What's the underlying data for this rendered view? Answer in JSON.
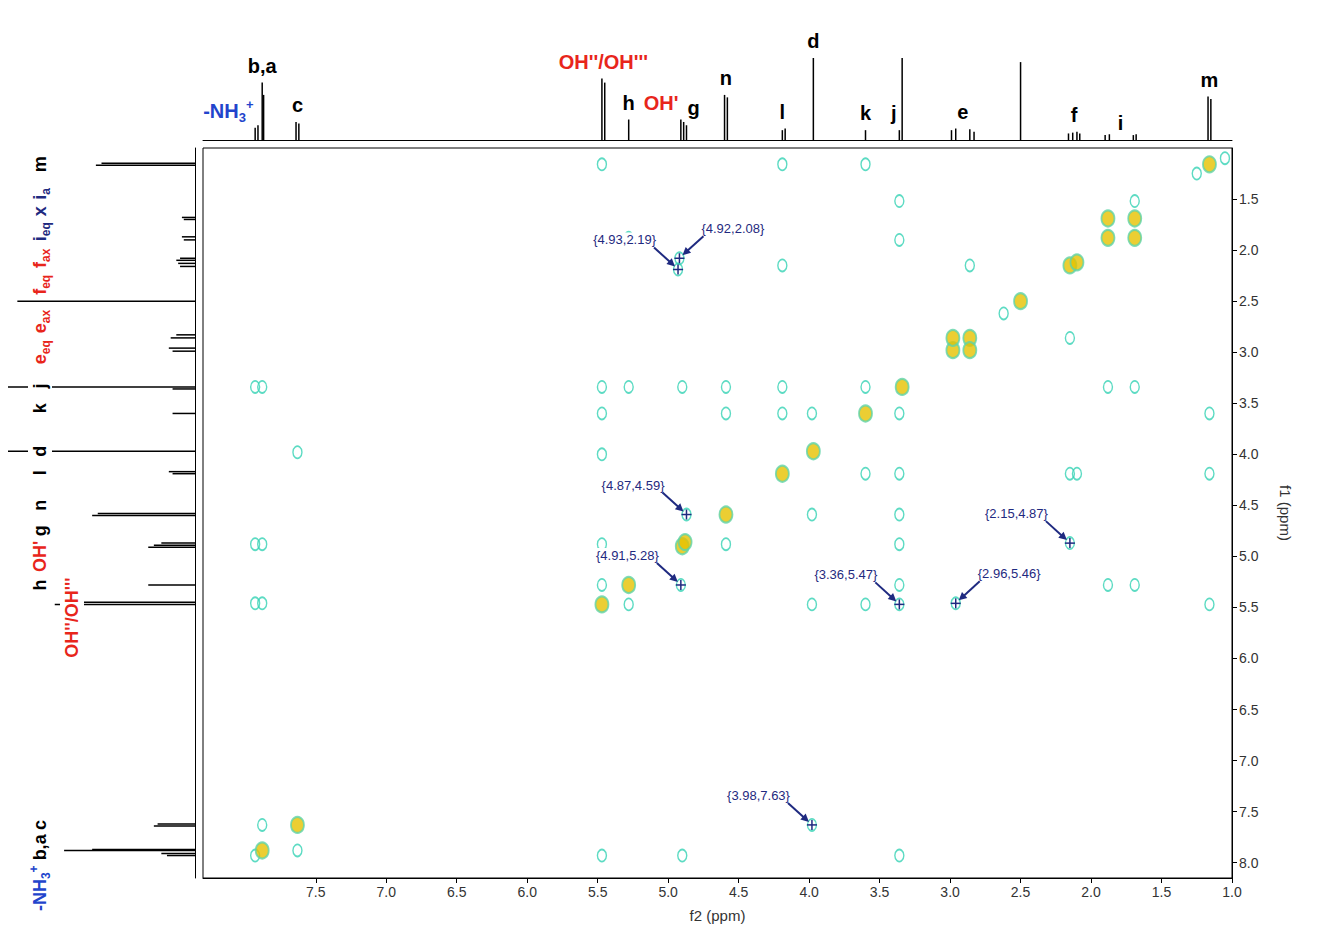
{
  "chart_data": {
    "type": "scatter",
    "xlabel": "f2 (ppm)",
    "ylabel": "f1 (ppm)",
    "xlim": [
      8.3,
      1.0
    ],
    "ylim": [
      8.15,
      1.0
    ],
    "xticks": [
      7.5,
      {
        "value": 7,
        "label": "7.0"
      },
      6.5,
      {
        "value": 6,
        "label": "6.0"
      },
      5.5,
      {
        "value": 5,
        "label": "5.0"
      },
      4.5,
      {
        "value": 4,
        "label": "4.0"
      },
      3.5,
      {
        "value": 3,
        "label": "3.0"
      },
      2.5,
      {
        "value": 2,
        "label": "2.0"
      },
      1.5,
      {
        "value": 1,
        "label": "1.0"
      }
    ],
    "yticks": [
      1.5,
      {
        "value": 2,
        "label": "2.0"
      },
      2.5,
      {
        "value": 3,
        "label": "3.0"
      },
      3.5,
      {
        "value": 4,
        "label": "4.0"
      },
      4.5,
      {
        "value": 5,
        "label": "5.0"
      },
      5.5,
      {
        "value": 6,
        "label": "6.0"
      },
      6.5,
      {
        "value": 7,
        "label": "7.0"
      },
      7.5,
      {
        "value": 8,
        "label": "8.0"
      }
    ],
    "grid": false,
    "series": [
      {
        "color": "#e6c200",
        "marker": "circle",
        "values": [
          [
            7.88,
            7.88
          ],
          [
            7.63,
            7.63
          ],
          [
            5.47,
            5.47
          ],
          [
            5.28,
            5.28
          ],
          [
            4.9,
            4.9
          ],
          [
            4.88,
            4.86
          ],
          [
            4.59,
            4.59
          ],
          [
            4.19,
            4.19
          ],
          [
            3.97,
            3.97
          ],
          [
            3.6,
            3.6
          ],
          [
            3.34,
            3.34
          ],
          [
            2.98,
            2.98
          ],
          [
            2.86,
            2.86
          ],
          [
            2.98,
            2.86
          ],
          [
            2.86,
            2.98
          ],
          [
            2.5,
            2.5
          ],
          [
            2.15,
            2.15
          ],
          [
            2.1,
            2.12
          ],
          [
            1.88,
            1.88
          ],
          [
            1.69,
            1.69
          ],
          [
            1.88,
            1.69
          ],
          [
            1.69,
            1.88
          ],
          [
            1.16,
            1.16
          ]
        ]
      },
      {
        "color": "#34d2b4",
        "marker": "ring",
        "values": [
          [
            7.93,
            3.34
          ],
          [
            7.88,
            3.34
          ],
          [
            7.63,
            3.98
          ],
          [
            7.93,
            4.88
          ],
          [
            7.88,
            4.88
          ],
          [
            7.93,
            5.46
          ],
          [
            7.88,
            5.46
          ],
          [
            7.88,
            7.63
          ],
          [
            7.63,
            7.88
          ],
          [
            7.93,
            7.93
          ],
          [
            5.47,
            1.16
          ],
          [
            5.47,
            3.34
          ],
          [
            5.47,
            3.6
          ],
          [
            5.47,
            4.0
          ],
          [
            5.47,
            4.88
          ],
          [
            5.47,
            5.28
          ],
          [
            5.47,
            7.93
          ],
          [
            5.28,
            1.88
          ],
          [
            5.28,
            3.34
          ],
          [
            5.28,
            5.47
          ],
          [
            4.93,
            2.19
          ],
          [
            4.92,
            2.08
          ],
          [
            4.9,
            3.34
          ],
          [
            4.87,
            4.59
          ],
          [
            4.91,
            5.28
          ],
          [
            4.9,
            7.93
          ],
          [
            4.59,
            3.34
          ],
          [
            4.59,
            3.6
          ],
          [
            4.59,
            4.88
          ],
          [
            4.19,
            1.16
          ],
          [
            4.19,
            2.15
          ],
          [
            4.19,
            3.34
          ],
          [
            4.19,
            3.6
          ],
          [
            3.98,
            7.63
          ],
          [
            3.98,
            3.6
          ],
          [
            3.98,
            4.59
          ],
          [
            3.98,
            5.47
          ],
          [
            3.6,
            1.16
          ],
          [
            3.6,
            3.34
          ],
          [
            3.6,
            4.19
          ],
          [
            3.6,
            5.47
          ],
          [
            3.36,
            1.52
          ],
          [
            3.36,
            1.9
          ],
          [
            3.36,
            3.6
          ],
          [
            3.36,
            4.19
          ],
          [
            3.36,
            4.59
          ],
          [
            3.36,
            4.88
          ],
          [
            3.36,
            5.28
          ],
          [
            3.36,
            5.47
          ],
          [
            3.36,
            7.93
          ],
          [
            2.96,
            5.46
          ],
          [
            2.15,
            4.87
          ],
          [
            2.15,
            4.19
          ],
          [
            2.1,
            4.19
          ],
          [
            2.15,
            2.86
          ],
          [
            2.62,
            2.62
          ],
          [
            2.86,
            2.15
          ],
          [
            1.88,
            5.28
          ],
          [
            1.88,
            3.34
          ],
          [
            1.69,
            5.28
          ],
          [
            1.69,
            3.34
          ],
          [
            1.69,
            1.52
          ],
          [
            1.16,
            4.19
          ],
          [
            1.16,
            5.47
          ],
          [
            1.16,
            3.6
          ],
          [
            1.25,
            1.25
          ],
          [
            1.05,
            1.1
          ]
        ]
      }
    ],
    "projection": {
      "lim": [
        0,
        100
      ],
      "x": [
        7.93,
        7.91,
        7.88,
        7.87,
        7.64,
        7.62,
        5.47,
        5.45,
        5.28,
        4.91,
        4.89,
        4.87,
        4.6,
        4.58,
        4.19,
        4.17,
        3.97,
        3.6,
        3.36,
        3.34,
        2.99,
        2.96,
        2.86,
        2.83,
        2.5,
        2.16,
        2.13,
        2.1,
        2.08,
        1.9,
        1.87,
        1.7,
        1.68,
        1.17,
        1.15
      ],
      "values": [
        15,
        18,
        70,
        55,
        22,
        20,
        75,
        70,
        25,
        25,
        22,
        18,
        55,
        52,
        12,
        14,
        100,
        12,
        12,
        100,
        12,
        14,
        13,
        10,
        95,
        8,
        9,
        10,
        8,
        6,
        7,
        6,
        7,
        53,
        50
      ]
    },
    "peak_labels": [
      {
        "text": "-NH",
        "sub": "3",
        "sup": "+",
        "x": 8.12,
        "color": "#2244cc"
      },
      {
        "text": "b,a",
        "x": 7.88,
        "color": "#000000"
      },
      {
        "text": "c",
        "x": 7.63,
        "color": "#000000"
      },
      {
        "text": "OH''/OH'''",
        "x": 5.46,
        "color": "#e8251b"
      },
      {
        "text": "h",
        "x": 5.28,
        "color": "#000000"
      },
      {
        "text": "OH'",
        "x": 5.05,
        "color": "#e8251b"
      },
      {
        "text": "g",
        "x": 4.82,
        "color": "#000000"
      },
      {
        "text": "n",
        "x": 4.59,
        "color": "#000000"
      },
      {
        "text": "l",
        "x": 4.19,
        "color": "#000000"
      },
      {
        "text": "d",
        "x": 3.97,
        "color": "#000000"
      },
      {
        "text": "k",
        "x": 3.6,
        "color": "#000000"
      },
      {
        "text": "j",
        "x": 3.4,
        "color": "#000000"
      },
      {
        "text": "e",
        "x": 2.91,
        "color": "#000000"
      },
      {
        "text": "f",
        "x": 2.12,
        "color": "#000000"
      },
      {
        "text": "i",
        "x": 1.79,
        "color": "#000000"
      },
      {
        "text": "m",
        "x": 1.16,
        "color": "#000000"
      }
    ],
    "left_labels": [
      {
        "text": "m",
        "y": 1.16,
        "color": "#000000"
      },
      {
        "text": "i",
        "sub": "a",
        "y": 1.45,
        "color": "#1f2a80"
      },
      {
        "text": "x",
        "y": 1.62,
        "color": "#1f2a80"
      },
      {
        "text": "i",
        "sub": "eq",
        "y": 1.82,
        "color": "#1f2a80"
      },
      {
        "text": "f",
        "sub": "ax",
        "y": 2.08,
        "color": "#e8251b"
      },
      {
        "text": "f",
        "sub": "eq",
        "y": 2.34,
        "color": "#e8251b"
      },
      {
        "text": "e",
        "sub": "ax",
        "y": 2.7,
        "color": "#e8251b"
      },
      {
        "text": "e",
        "sub": "eq",
        "y": 3.0,
        "color": "#e8251b"
      },
      {
        "text": "j",
        "y": 3.33,
        "color": "#000000"
      },
      {
        "text": "k",
        "y": 3.55,
        "color": "#000000"
      },
      {
        "text": "d",
        "y": 3.97,
        "color": "#000000"
      },
      {
        "text": "l",
        "y": 4.18,
        "color": "#000000"
      },
      {
        "text": "n",
        "y": 4.5,
        "color": "#000000"
      },
      {
        "text": "g",
        "y": 4.75,
        "color": "#000000"
      },
      {
        "text": "OH'",
        "y": 5.0,
        "color": "#e8251b"
      },
      {
        "text": "h",
        "y": 5.28,
        "color": "#000000"
      },
      {
        "text": "OH''/OH'''",
        "y": 5.6,
        "color": "#e8251b"
      },
      {
        "text": "c",
        "y": 7.63,
        "color": "#000000"
      },
      {
        "text": "b,a",
        "y": 7.85,
        "color": "#000000"
      },
      {
        "text": "-NH",
        "sub": "3",
        "sup": "+",
        "y": 8.25,
        "color": "#2244cc"
      }
    ],
    "annotations": [
      {
        "text": "{4.93,2.19}",
        "x": 4.93,
        "y": 2.19
      },
      {
        "text": "{4.92,2.08}",
        "x": 4.92,
        "y": 2.08
      },
      {
        "text": "{4.87,4.59}",
        "x": 4.87,
        "y": 4.59
      },
      {
        "text": "{4.91,5.28}",
        "x": 4.91,
        "y": 5.28
      },
      {
        "text": "{2.15,4.87}",
        "x": 2.15,
        "y": 4.87
      },
      {
        "text": "{3.36,5.47}",
        "x": 3.36,
        "y": 5.47
      },
      {
        "text": "{2.96,5.46}",
        "x": 2.96,
        "y": 5.46
      },
      {
        "text": "{3.98,7.63}",
        "x": 3.98,
        "y": 7.63
      }
    ]
  }
}
